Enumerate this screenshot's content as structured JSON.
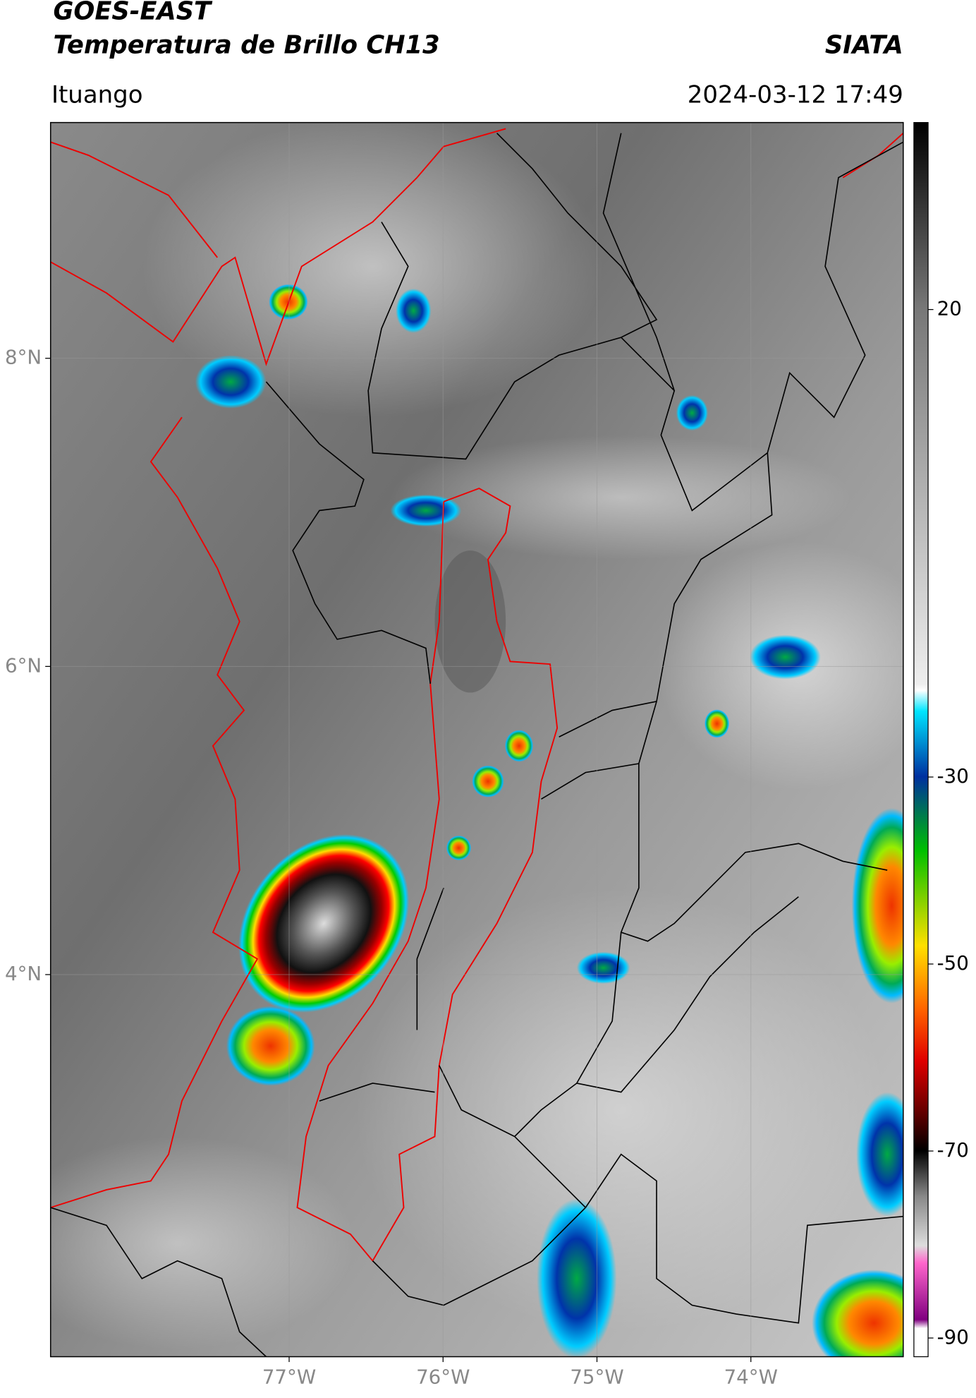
{
  "header": {
    "satellite": "GOES-EAST",
    "product": "Temperatura de Brillo CH13",
    "institution": "SIATA",
    "region": "Ituango",
    "timestamp": "2024-03-12 17:49"
  },
  "chart_data": {
    "type": "map",
    "xlim": [
      -78.55,
      -73.01
    ],
    "ylim": [
      1.52,
      9.53
    ],
    "xticks": [
      {
        "value": -77,
        "label": "77°W"
      },
      {
        "value": -76,
        "label": "76°W"
      },
      {
        "value": -75,
        "label": "75°W"
      },
      {
        "value": -74,
        "label": "74°W"
      }
    ],
    "yticks": [
      {
        "value": 4,
        "label": "4°N"
      },
      {
        "value": 6,
        "label": "6°N"
      },
      {
        "value": 8,
        "label": "8°N"
      }
    ],
    "grid": true,
    "colorbar": {
      "lim": [
        -92,
        40
      ],
      "ticks": [
        20,
        -30,
        -50,
        -70,
        -90
      ]
    }
  }
}
